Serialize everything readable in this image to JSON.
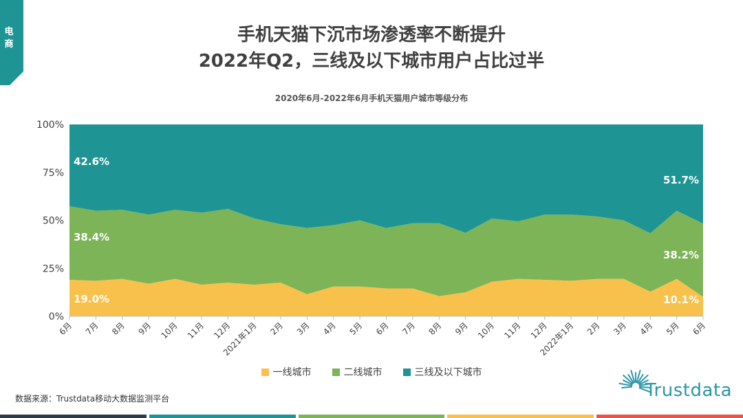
{
  "side_tab": {
    "label": "电商",
    "color": "#1e9594"
  },
  "header": {
    "title_line1": "手机天猫下沉市场渗透率不断提升",
    "title_line2": "2022年Q2，三线及以下城市用户占比过半"
  },
  "colors": {
    "tier1": "#f8c14c",
    "tier2": "#7cb457",
    "tier3": "#1e9594"
  },
  "chart_data": {
    "type": "area",
    "stacked": true,
    "title": "2020年6月-2022年6月手机天猫用户城市等级分布",
    "categories": [
      "6月",
      "7月",
      "8月",
      "9月",
      "10月",
      "11月",
      "12月",
      "2021年1月",
      "2月",
      "3月",
      "4月",
      "5月",
      "6月",
      "7月",
      "8月",
      "9月",
      "10月",
      "11月",
      "12月",
      "2022年1月",
      "2月",
      "3月",
      "4月",
      "5月",
      "6月"
    ],
    "series": [
      {
        "name": "一线城市",
        "values": [
          19.0,
          18.5,
          19.5,
          17.0,
          19.5,
          16.5,
          17.5,
          16.5,
          17.5,
          11.5,
          15.5,
          15.5,
          14.5,
          14.5,
          10.5,
          12.5,
          18.0,
          19.5,
          19.0,
          18.5,
          19.5,
          19.5,
          12.8,
          19.5,
          10.1
        ]
      },
      {
        "name": "二线城市",
        "values": [
          38.4,
          36.5,
          36.0,
          36.0,
          36.0,
          37.5,
          38.5,
          34.5,
          30.5,
          34.5,
          32.0,
          34.5,
          31.5,
          34.0,
          38.0,
          31.0,
          33.0,
          30.0,
          34.0,
          34.5,
          32.5,
          30.5,
          30.5,
          35.5,
          38.2
        ]
      },
      {
        "name": "三线及以下城市",
        "values": [
          42.6,
          45.0,
          44.5,
          47.0,
          44.5,
          46.0,
          44.0,
          49.0,
          52.0,
          54.0,
          52.5,
          50.0,
          54.0,
          51.5,
          51.5,
          56.5,
          49.0,
          50.5,
          47.0,
          47.0,
          48.0,
          50.0,
          56.7,
          45.0,
          51.7
        ]
      }
    ],
    "ylim": [
      0,
      100
    ],
    "yticks": [
      "0%",
      "25%",
      "50%",
      "75%",
      "100%"
    ],
    "data_labels": {
      "first": {
        "tier1": "19.0%",
        "tier2": "38.4%",
        "tier3": "42.6%"
      },
      "last": {
        "tier1": "10.1%",
        "tier2": "38.2%",
        "tier3": "51.7%"
      }
    }
  },
  "legend": [
    {
      "label": "一线城市",
      "color": "#f8c14c"
    },
    {
      "label": "二线城市",
      "color": "#7cb457"
    },
    {
      "label": "三线及以下城市",
      "color": "#1e9594"
    }
  ],
  "source": "数据来源：Trustdata移动大数据监测平台",
  "brand": {
    "name": "Trustdata"
  },
  "footer_colors": [
    "#2f3a45",
    "#1e9594",
    "#7cb457",
    "#f8c14c",
    "#e8534a"
  ]
}
